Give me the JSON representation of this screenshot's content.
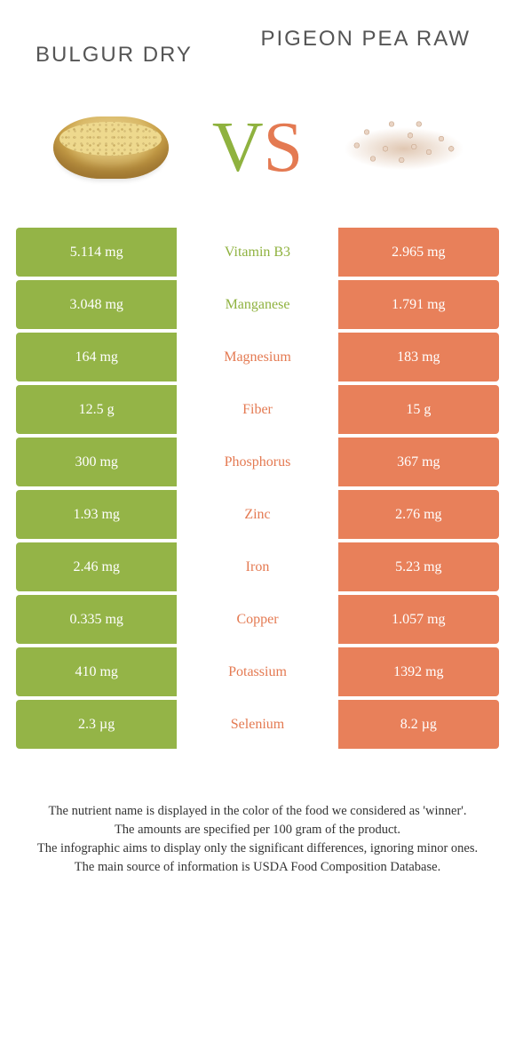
{
  "colors": {
    "left": "#94b447",
    "right": "#e8805a",
    "left_text": "#8fb23f",
    "right_text": "#e47a52"
  },
  "header": {
    "left_title": "BULGUR DRY",
    "right_title": "PIGEON PEA RAW"
  },
  "vs": {
    "v": "V",
    "s": "S"
  },
  "rows": [
    {
      "left": "5.114 mg",
      "name": "Vitamin B3",
      "right": "2.965 mg",
      "winner": "left"
    },
    {
      "left": "3.048 mg",
      "name": "Manganese",
      "right": "1.791 mg",
      "winner": "left"
    },
    {
      "left": "164 mg",
      "name": "Magnesium",
      "right": "183 mg",
      "winner": "right"
    },
    {
      "left": "12.5 g",
      "name": "Fiber",
      "right": "15 g",
      "winner": "right"
    },
    {
      "left": "300 mg",
      "name": "Phosphorus",
      "right": "367 mg",
      "winner": "right"
    },
    {
      "left": "1.93 mg",
      "name": "Zinc",
      "right": "2.76 mg",
      "winner": "right"
    },
    {
      "left": "2.46 mg",
      "name": "Iron",
      "right": "5.23 mg",
      "winner": "right"
    },
    {
      "left": "0.335 mg",
      "name": "Copper",
      "right": "1.057 mg",
      "winner": "right"
    },
    {
      "left": "410 mg",
      "name": "Potassium",
      "right": "1392 mg",
      "winner": "right"
    },
    {
      "left": "2.3 µg",
      "name": "Selenium",
      "right": "8.2 µg",
      "winner": "right"
    }
  ],
  "footer": {
    "line1": "The nutrient name is displayed in the color of the food we considered as 'winner'.",
    "line2": "The amounts are specified per 100 gram of the product.",
    "line3": "The infographic aims to display only the significant differences, ignoring minor ones.",
    "line4": "The main source of information is USDA Food Composition Database."
  }
}
